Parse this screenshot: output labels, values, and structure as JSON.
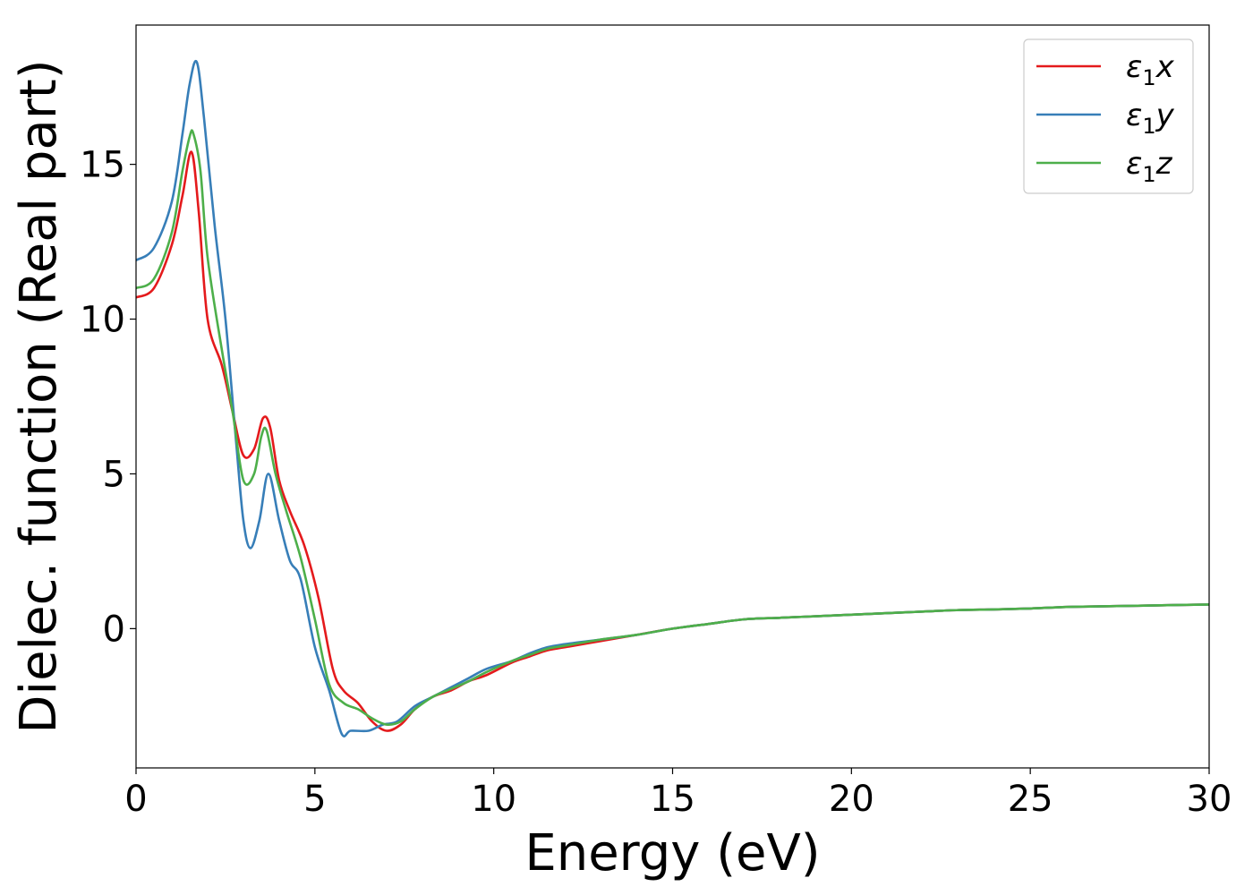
{
  "chart_data": {
    "type": "line",
    "xlabel": "Energy (eV)",
    "ylabel": "Dielec. function (Real part)",
    "xlim": [
      0,
      30
    ],
    "ylim": [
      -4.5,
      19.5
    ],
    "xticks": [
      0,
      5,
      10,
      15,
      20,
      25,
      30
    ],
    "yticks": [
      0,
      5,
      10,
      15
    ],
    "grid": false,
    "legend_position": "top-right",
    "series": [
      {
        "name": "ε₁x",
        "legend_base": "ε",
        "legend_sub": "1",
        "legend_suffix": "x",
        "color": "#e41a1c",
        "x": [
          0,
          0.5,
          1.0,
          1.3,
          1.55,
          1.75,
          2.0,
          2.4,
          2.7,
          3.0,
          3.3,
          3.55,
          3.75,
          4.0,
          4.3,
          4.7,
          5.1,
          5.5,
          5.8,
          6.2,
          6.6,
          7.0,
          7.4,
          7.8,
          8.3,
          8.8,
          9.3,
          9.8,
          10.5,
          11.0,
          11.5,
          12.0,
          13.0,
          14.0,
          15.0,
          16.0,
          17.0,
          18.0,
          19.0,
          20.0,
          21.0,
          22.0,
          23.0,
          24.0,
          25.0,
          26.0,
          27.0,
          28.0,
          29.0,
          30.0
        ],
        "y": [
          10.7,
          11.0,
          12.4,
          14.0,
          15.4,
          13.5,
          10.0,
          8.5,
          7.0,
          5.6,
          5.8,
          6.8,
          6.5,
          4.8,
          3.8,
          2.7,
          1.0,
          -1.3,
          -2.0,
          -2.4,
          -3.0,
          -3.3,
          -3.1,
          -2.6,
          -2.2,
          -2.0,
          -1.7,
          -1.5,
          -1.1,
          -0.9,
          -0.7,
          -0.6,
          -0.4,
          -0.2,
          0.0,
          0.15,
          0.3,
          0.35,
          0.4,
          0.45,
          0.5,
          0.55,
          0.6,
          0.62,
          0.65,
          0.7,
          0.72,
          0.74,
          0.76,
          0.78
        ]
      },
      {
        "name": "ε₁y",
        "legend_base": "ε",
        "legend_sub": "1",
        "legend_suffix": "y",
        "color": "#377eb8",
        "x": [
          0,
          0.5,
          1.0,
          1.3,
          1.5,
          1.7,
          1.9,
          2.2,
          2.5,
          2.8,
          3.0,
          3.2,
          3.45,
          3.7,
          4.0,
          4.3,
          4.6,
          5.0,
          5.4,
          5.75,
          6.0,
          6.5,
          6.9,
          7.3,
          7.8,
          8.3,
          8.8,
          9.3,
          9.8,
          10.5,
          11.0,
          11.5,
          12.0,
          13.0,
          14.0,
          15.0,
          16.0,
          17.0,
          18.0,
          19.0,
          20.0,
          21.0,
          22.0,
          23.0,
          24.0,
          25.0,
          26.0,
          27.0,
          28.0,
          29.0,
          30.0
        ],
        "y": [
          11.9,
          12.3,
          13.8,
          16.0,
          17.6,
          18.3,
          16.5,
          13.0,
          10.0,
          6.0,
          3.5,
          2.6,
          3.5,
          5.0,
          3.5,
          2.2,
          1.6,
          -0.6,
          -2.0,
          -3.4,
          -3.3,
          -3.3,
          -3.1,
          -3.0,
          -2.5,
          -2.2,
          -1.9,
          -1.6,
          -1.3,
          -1.05,
          -0.8,
          -0.6,
          -0.5,
          -0.35,
          -0.2,
          0.0,
          0.15,
          0.3,
          0.35,
          0.4,
          0.45,
          0.5,
          0.55,
          0.6,
          0.62,
          0.65,
          0.7,
          0.72,
          0.74,
          0.76,
          0.78
        ]
      },
      {
        "name": "ε₁z",
        "legend_base": "ε",
        "legend_sub": "1",
        "legend_suffix": "z",
        "color": "#4daf4a",
        "x": [
          0,
          0.5,
          1.0,
          1.3,
          1.5,
          1.6,
          1.8,
          2.0,
          2.4,
          2.7,
          3.0,
          3.3,
          3.5,
          3.65,
          3.9,
          4.2,
          4.6,
          5.0,
          5.4,
          5.8,
          6.2,
          6.6,
          7.0,
          7.4,
          7.8,
          8.3,
          8.8,
          9.3,
          9.8,
          10.5,
          11.0,
          11.5,
          12.0,
          13.0,
          14.0,
          15.0,
          16.0,
          17.0,
          18.0,
          19.0,
          20.0,
          21.0,
          22.0,
          23.0,
          24.0,
          25.0,
          26.0,
          27.0,
          28.0,
          29.0,
          30.0
        ],
        "y": [
          11.0,
          11.3,
          12.8,
          14.8,
          15.9,
          16.0,
          14.8,
          12.0,
          9.0,
          7.0,
          4.8,
          5.0,
          6.2,
          6.4,
          5.0,
          3.8,
          2.3,
          0.3,
          -1.8,
          -2.4,
          -2.6,
          -2.9,
          -3.1,
          -3.0,
          -2.6,
          -2.2,
          -1.95,
          -1.7,
          -1.4,
          -1.05,
          -0.85,
          -0.65,
          -0.55,
          -0.35,
          -0.2,
          0.0,
          0.15,
          0.3,
          0.35,
          0.4,
          0.45,
          0.5,
          0.55,
          0.6,
          0.62,
          0.65,
          0.7,
          0.72,
          0.74,
          0.76,
          0.78
        ]
      }
    ]
  }
}
